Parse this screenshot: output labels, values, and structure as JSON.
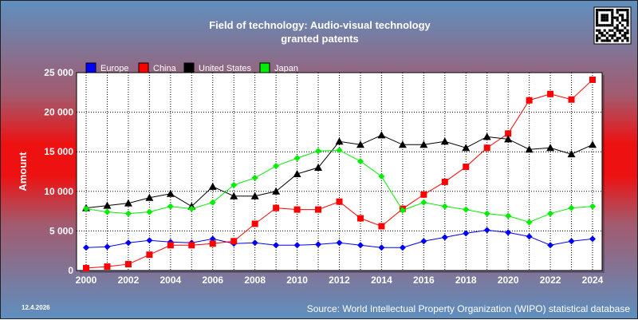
{
  "date_stamp": "12.4.2026",
  "source_text": "Source: World Intellectual Property Organization (WIPO) statistical database",
  "qr_icon": "qr-code-icon",
  "chart_data": {
    "type": "line",
    "title": "Field of technology: Audio-visual technology",
    "subtitle": "granted patents",
    "xlabel": "",
    "ylabel": "Amount",
    "x": [
      2000,
      2001,
      2002,
      2003,
      2004,
      2005,
      2006,
      2007,
      2008,
      2009,
      2010,
      2011,
      2012,
      2013,
      2014,
      2015,
      2016,
      2017,
      2018,
      2019,
      2020,
      2021,
      2022,
      2023,
      2024
    ],
    "xlim": [
      2000,
      2024
    ],
    "ylim": [
      0,
      25000
    ],
    "x_ticks": [
      2000,
      2002,
      2004,
      2006,
      2008,
      2010,
      2012,
      2014,
      2016,
      2018,
      2020,
      2022,
      2024
    ],
    "y_ticks": [
      0,
      5000,
      10000,
      15000,
      20000,
      25000
    ],
    "y_tick_labels": [
      "0",
      "5 000",
      "10 000",
      "15 000",
      "20 000",
      "25 000"
    ],
    "grid": true,
    "legend_position": "top-left",
    "series": [
      {
        "name": "Europe",
        "color": "#0000ff",
        "marker": "diamond",
        "values": [
          2900,
          3000,
          3500,
          3800,
          3600,
          3500,
          4000,
          3400,
          3500,
          3200,
          3200,
          3300,
          3500,
          3200,
          2900,
          2900,
          3700,
          4200,
          4700,
          5100,
          4800,
          4300,
          3200,
          3700,
          4000
        ]
      },
      {
        "name": "China",
        "color": "#ff0000",
        "marker": "square",
        "values": [
          300,
          500,
          800,
          2000,
          3200,
          3200,
          3400,
          3700,
          5900,
          7900,
          7700,
          7700,
          8700,
          6600,
          5600,
          7800,
          9600,
          11200,
          13100,
          15500,
          17300,
          21500,
          22300,
          21600,
          24100
        ]
      },
      {
        "name": "United States",
        "color": "#000000",
        "marker": "triangle",
        "values": [
          7900,
          8200,
          8500,
          9200,
          9700,
          8100,
          10600,
          9400,
          9400,
          10000,
          12200,
          13000,
          16300,
          15900,
          17100,
          15900,
          15900,
          16300,
          15500,
          16900,
          16600,
          15300,
          15500,
          14700,
          15900
        ]
      },
      {
        "name": "Japan",
        "color": "#00ee00",
        "marker": "diamond",
        "values": [
          7800,
          7400,
          7200,
          7400,
          8100,
          7800,
          8600,
          10800,
          11700,
          13200,
          14200,
          15100,
          15200,
          13800,
          11900,
          7600,
          8600,
          8100,
          7700,
          7200,
          6900,
          6100,
          7200,
          7900,
          8100
        ]
      }
    ]
  }
}
